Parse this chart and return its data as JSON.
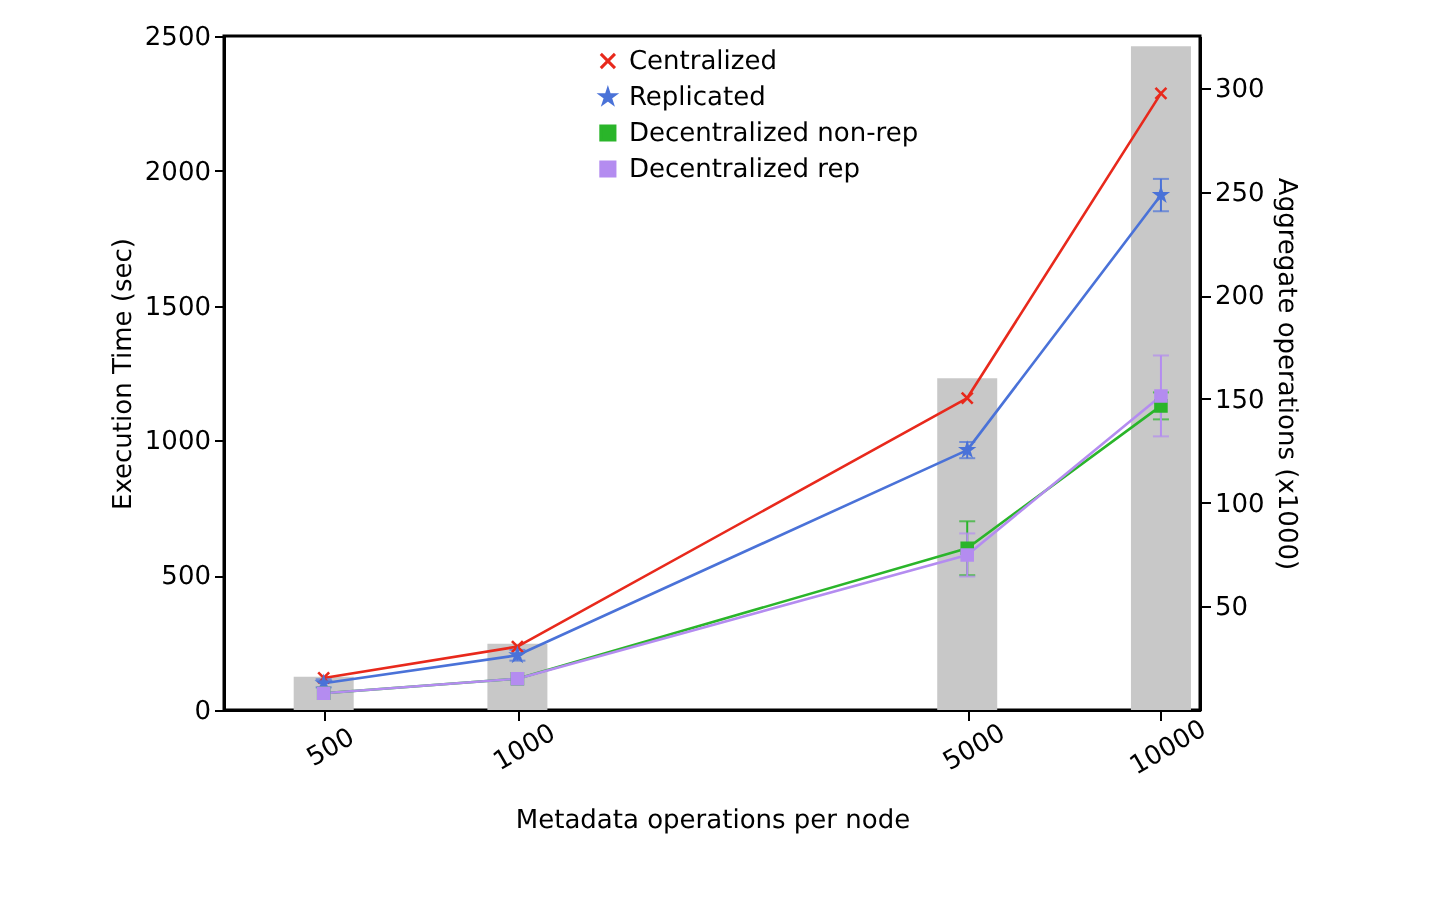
{
  "chart_data": {
    "type": "line",
    "xlabel": "Metadata operations per node",
    "ylabel": "Execution Time (sec)",
    "y2label": "Aggregate operations (x1000)",
    "x": [
      500,
      1000,
      5000,
      10000
    ],
    "log": "x",
    "xlim": [
      350,
      11500
    ],
    "xticks": [
      500,
      1000,
      5000,
      10000
    ],
    "ylim": [
      0,
      2500
    ],
    "yticks": [
      0,
      500,
      1000,
      1500,
      2000,
      2500
    ],
    "y2lim": [
      0,
      325
    ],
    "y2ticks": [
      50,
      100,
      150,
      200,
      250,
      300
    ],
    "grid": false,
    "legend": "top",
    "line_style": "solid",
    "series": [
      {
        "type": "bar",
        "axis": "y2",
        "color": "#c8c8c8",
        "values": [
          16,
          32,
          160,
          320
        ]
      },
      {
        "name": "Centralized",
        "color": "#e8291c",
        "marker": "cross",
        "values": [
          119,
          235,
          1157,
          2287
        ],
        "errors": [
          null,
          null,
          null,
          null
        ]
      },
      {
        "name": "Replicated",
        "color": "#4a72d8",
        "marker": "star",
        "values": [
          99,
          203,
          964,
          1910
        ],
        "errors": [
          15,
          20,
          30,
          60
        ]
      },
      {
        "name": "Decentralized non-rep",
        "color": "#2ab52a",
        "marker": "square",
        "values": [
          62,
          116,
          600,
          1128
        ],
        "errors": [
          null,
          null,
          100,
          50
        ]
      },
      {
        "name": "Decentralized rep",
        "color": "#b48cf0",
        "marker": "square",
        "values": [
          62,
          116,
          575,
          1165
        ],
        "errors": [
          null,
          null,
          80,
          150
        ]
      }
    ]
  }
}
